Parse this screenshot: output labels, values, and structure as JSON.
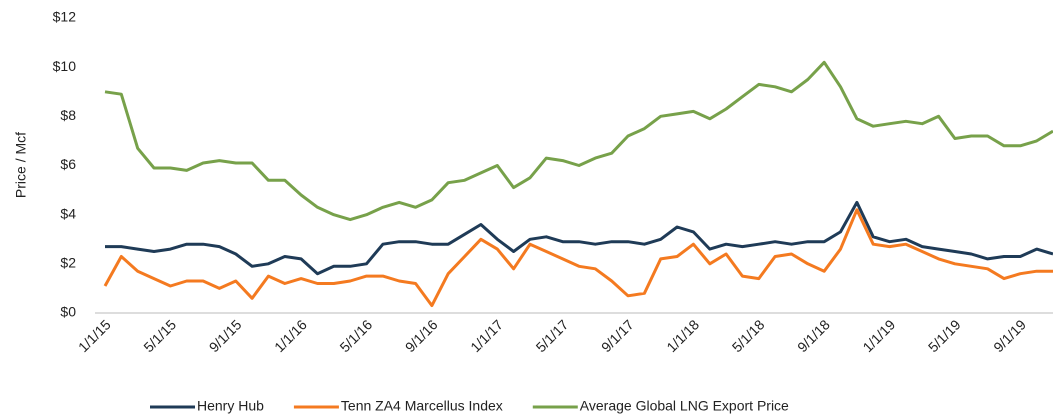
{
  "chart_data": {
    "type": "line",
    "y_label": "Price / Mcf",
    "categories": [
      "1/1/15",
      null,
      null,
      null,
      "5/1/15",
      null,
      null,
      null,
      "9/1/15",
      null,
      null,
      null,
      "1/1/16",
      null,
      null,
      null,
      "5/1/16",
      null,
      null,
      null,
      "9/1/16",
      null,
      null,
      null,
      "1/1/17",
      null,
      null,
      null,
      "5/1/17",
      null,
      null,
      null,
      "9/1/17",
      null,
      null,
      null,
      "1/1/18",
      null,
      null,
      null,
      "5/1/18",
      null,
      null,
      null,
      "9/1/18",
      null,
      null,
      null,
      "1/1/19",
      null,
      null,
      null,
      "5/1/19",
      null,
      null,
      null,
      "9/1/19",
      null,
      null
    ],
    "series": [
      {
        "name": "Henry Hub",
        "color": "#1f3b57",
        "values": [
          2.7,
          2.7,
          2.6,
          2.5,
          2.6,
          2.8,
          2.8,
          2.7,
          2.4,
          1.9,
          2.0,
          2.3,
          2.2,
          1.6,
          1.9,
          1.9,
          2.0,
          2.8,
          2.9,
          2.9,
          2.8,
          2.8,
          3.2,
          3.6,
          3.0,
          2.5,
          3.0,
          3.1,
          2.9,
          2.9,
          2.8,
          2.9,
          2.9,
          2.8,
          3.0,
          3.5,
          3.3,
          2.6,
          2.8,
          2.7,
          2.8,
          2.9,
          2.8,
          2.9,
          2.9,
          3.3,
          4.5,
          3.1,
          2.9,
          3.0,
          2.7,
          2.6,
          2.5,
          2.4,
          2.2,
          2.3,
          2.3,
          2.6,
          2.4
        ]
      },
      {
        "name": "Tenn ZA4 Marcellus Index",
        "color": "#f47a20",
        "values": [
          1.1,
          2.3,
          1.7,
          1.4,
          1.1,
          1.3,
          1.3,
          1.0,
          1.3,
          0.6,
          1.5,
          1.2,
          1.4,
          1.2,
          1.2,
          1.3,
          1.5,
          1.5,
          1.3,
          1.2,
          0.3,
          1.6,
          2.3,
          3.0,
          2.6,
          1.8,
          2.8,
          2.5,
          2.2,
          1.9,
          1.8,
          1.3,
          0.7,
          0.8,
          2.2,
          2.3,
          2.8,
          2.0,
          2.4,
          1.5,
          1.4,
          2.3,
          2.4,
          2.0,
          1.7,
          2.6,
          4.2,
          2.8,
          2.7,
          2.8,
          2.5,
          2.2,
          2.0,
          1.9,
          1.8,
          1.4,
          1.6,
          1.7,
          1.7
        ]
      },
      {
        "name": "Average Global LNG Export Price",
        "color": "#77a14a",
        "values": [
          9.0,
          8.9,
          6.7,
          5.9,
          5.9,
          5.8,
          6.1,
          6.2,
          6.1,
          6.1,
          5.4,
          5.4,
          4.8,
          4.3,
          4.0,
          3.8,
          4.0,
          4.3,
          4.5,
          4.3,
          4.6,
          5.3,
          5.4,
          5.7,
          6.0,
          5.1,
          5.5,
          6.3,
          6.2,
          6.0,
          6.3,
          6.5,
          7.2,
          7.5,
          8.0,
          8.1,
          8.2,
          7.9,
          8.3,
          8.8,
          9.3,
          9.2,
          9.0,
          9.5,
          10.2,
          9.2,
          7.9,
          7.6,
          7.7,
          7.8,
          7.7,
          8.0,
          7.1,
          7.2,
          7.2,
          6.8,
          6.8,
          7.0,
          7.4
        ]
      }
    ],
    "ylim": [
      0,
      12
    ],
    "yticks": [
      {
        "value": 0,
        "label": "$0"
      },
      {
        "value": 2,
        "label": "$2"
      },
      {
        "value": 4,
        "label": "$4"
      },
      {
        "value": 6,
        "label": "$6"
      },
      {
        "value": 8,
        "label": "$8"
      },
      {
        "value": 10,
        "label": "$10"
      },
      {
        "value": 12,
        "label": "$12"
      }
    ],
    "grid": false,
    "legend": "bottom"
  }
}
